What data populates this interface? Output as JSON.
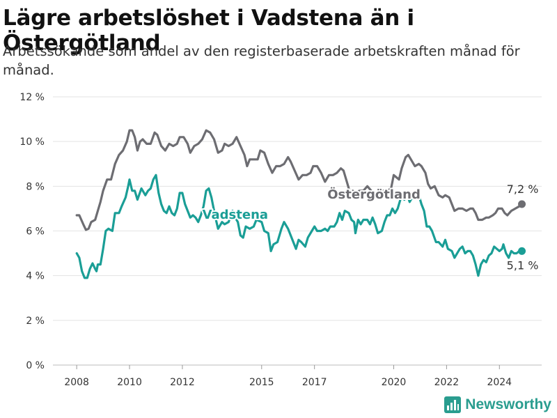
{
  "header": {
    "title": "Lägre arbetslöshet i Vadstena än i Östergötland",
    "subtitle": "Arbetssökande som andel av den registerbaserade arbetskraften månad för månad."
  },
  "brand": {
    "name": "Newsworthy",
    "icon": "bar-chart-icon",
    "color": "#2a9d8f"
  },
  "chart_data": {
    "type": "line",
    "title": "Lägre arbetslöshet i Vadstena än i Östergötland",
    "subtitle": "Arbetssökande som andel av den registerbaserade arbetskraften månad för månad.",
    "ylim": [
      0,
      12
    ],
    "y_ticks": [
      0,
      2,
      4,
      6,
      8,
      10,
      12
    ],
    "y_tick_labels": [
      "0 %",
      "2 %",
      "4 %",
      "6 %",
      "8 %",
      "10 %",
      "12 %"
    ],
    "x_ticks": [
      2008,
      2010,
      2012,
      2015,
      2017,
      2020,
      2022,
      2024
    ],
    "x_tick_labels": [
      "2008",
      "2010",
      "2012",
      "2015",
      "2017",
      "2020",
      "2022",
      "2024"
    ],
    "grid": "horizontal",
    "series": [
      {
        "name": "Östergötland",
        "color": "#6d6d72",
        "end_label": "7,2 %",
        "points": [
          [
            2008.0,
            6.7
          ],
          [
            2008.1,
            6.7
          ],
          [
            2008.25,
            6.3
          ],
          [
            2008.35,
            6.05
          ],
          [
            2008.45,
            6.1
          ],
          [
            2008.55,
            6.4
          ],
          [
            2008.7,
            6.5
          ],
          [
            2008.8,
            6.9
          ],
          [
            2008.9,
            7.3
          ],
          [
            2009.0,
            7.8
          ],
          [
            2009.15,
            8.3
          ],
          [
            2009.3,
            8.3
          ],
          [
            2009.45,
            9.0
          ],
          [
            2009.6,
            9.4
          ],
          [
            2009.75,
            9.6
          ],
          [
            2009.9,
            10.0
          ],
          [
            2010.0,
            10.5
          ],
          [
            2010.1,
            10.5
          ],
          [
            2010.2,
            10.2
          ],
          [
            2010.3,
            9.6
          ],
          [
            2010.4,
            10.0
          ],
          [
            2010.5,
            10.1
          ],
          [
            2010.65,
            9.9
          ],
          [
            2010.8,
            9.9
          ],
          [
            2010.95,
            10.4
          ],
          [
            2011.05,
            10.3
          ],
          [
            2011.2,
            9.8
          ],
          [
            2011.35,
            9.6
          ],
          [
            2011.5,
            9.9
          ],
          [
            2011.65,
            9.8
          ],
          [
            2011.8,
            9.9
          ],
          [
            2011.9,
            10.2
          ],
          [
            2012.05,
            10.2
          ],
          [
            2012.2,
            9.9
          ],
          [
            2012.3,
            9.5
          ],
          [
            2012.45,
            9.8
          ],
          [
            2012.6,
            9.9
          ],
          [
            2012.75,
            10.1
          ],
          [
            2012.9,
            10.5
          ],
          [
            2013.05,
            10.4
          ],
          [
            2013.2,
            10.1
          ],
          [
            2013.35,
            9.5
          ],
          [
            2013.5,
            9.6
          ],
          [
            2013.6,
            9.9
          ],
          [
            2013.75,
            9.8
          ],
          [
            2013.9,
            9.9
          ],
          [
            2014.05,
            10.2
          ],
          [
            2014.2,
            9.8
          ],
          [
            2014.35,
            9.4
          ],
          [
            2014.45,
            8.9
          ],
          [
            2014.55,
            9.2
          ],
          [
            2014.7,
            9.2
          ],
          [
            2014.85,
            9.2
          ],
          [
            2014.95,
            9.6
          ],
          [
            2015.1,
            9.5
          ],
          [
            2015.25,
            9.0
          ],
          [
            2015.4,
            8.6
          ],
          [
            2015.55,
            8.9
          ],
          [
            2015.7,
            8.9
          ],
          [
            2015.85,
            9.0
          ],
          [
            2016.0,
            9.3
          ],
          [
            2016.1,
            9.1
          ],
          [
            2016.25,
            8.7
          ],
          [
            2016.4,
            8.3
          ],
          [
            2016.55,
            8.5
          ],
          [
            2016.7,
            8.5
          ],
          [
            2016.85,
            8.6
          ],
          [
            2016.95,
            8.9
          ],
          [
            2017.1,
            8.9
          ],
          [
            2017.25,
            8.6
          ],
          [
            2017.4,
            8.2
          ],
          [
            2017.55,
            8.5
          ],
          [
            2017.7,
            8.5
          ],
          [
            2017.85,
            8.6
          ],
          [
            2018.0,
            8.8
          ],
          [
            2018.1,
            8.7
          ],
          [
            2018.2,
            8.3
          ],
          [
            2018.35,
            7.7
          ],
          [
            2018.45,
            7.8
          ],
          [
            2018.55,
            7.7
          ],
          [
            2018.7,
            7.8
          ],
          [
            2018.85,
            7.8
          ],
          [
            2019.0,
            8.0
          ],
          [
            2019.15,
            7.8
          ],
          [
            2019.3,
            7.6
          ],
          [
            2019.45,
            7.5
          ],
          [
            2019.6,
            7.8
          ],
          [
            2019.75,
            7.8
          ],
          [
            2019.9,
            7.9
          ],
          [
            2020.0,
            8.5
          ],
          [
            2020.1,
            8.4
          ],
          [
            2020.2,
            8.3
          ],
          [
            2020.3,
            8.8
          ],
          [
            2020.45,
            9.3
          ],
          [
            2020.55,
            9.4
          ],
          [
            2020.65,
            9.2
          ],
          [
            2020.8,
            8.9
          ],
          [
            2020.95,
            9.0
          ],
          [
            2021.05,
            8.9
          ],
          [
            2021.2,
            8.6
          ],
          [
            2021.3,
            8.1
          ],
          [
            2021.4,
            7.9
          ],
          [
            2021.55,
            8.0
          ],
          [
            2021.7,
            7.6
          ],
          [
            2021.85,
            7.5
          ],
          [
            2021.95,
            7.6
          ],
          [
            2022.1,
            7.5
          ],
          [
            2022.2,
            7.2
          ],
          [
            2022.3,
            6.9
          ],
          [
            2022.45,
            7.0
          ],
          [
            2022.6,
            7.0
          ],
          [
            2022.75,
            6.9
          ],
          [
            2022.9,
            7.0
          ],
          [
            2023.0,
            7.0
          ],
          [
            2023.1,
            6.8
          ],
          [
            2023.2,
            6.5
          ],
          [
            2023.35,
            6.5
          ],
          [
            2023.5,
            6.6
          ],
          [
            2023.6,
            6.6
          ],
          [
            2023.75,
            6.7
          ],
          [
            2023.85,
            6.8
          ],
          [
            2023.95,
            7.0
          ],
          [
            2024.1,
            7.0
          ],
          [
            2024.2,
            6.8
          ],
          [
            2024.3,
            6.7
          ],
          [
            2024.45,
            6.9
          ],
          [
            2024.6,
            7.0
          ],
          [
            2024.75,
            7.1
          ],
          [
            2024.85,
            7.2
          ]
        ]
      },
      {
        "name": "Vadstena",
        "color": "#1a9e96",
        "end_label": "5,1 %",
        "points": [
          [
            2008.0,
            5.0
          ],
          [
            2008.1,
            4.8
          ],
          [
            2008.2,
            4.2
          ],
          [
            2008.3,
            3.9
          ],
          [
            2008.4,
            3.9
          ],
          [
            2008.5,
            4.3
          ],
          [
            2008.6,
            4.55
          ],
          [
            2008.7,
            4.3
          ],
          [
            2008.75,
            4.2
          ],
          [
            2008.8,
            4.5
          ],
          [
            2008.9,
            4.5
          ],
          [
            2009.0,
            5.2
          ],
          [
            2009.1,
            6.0
          ],
          [
            2009.2,
            6.1
          ],
          [
            2009.35,
            6.0
          ],
          [
            2009.45,
            6.8
          ],
          [
            2009.6,
            6.8
          ],
          [
            2009.7,
            7.1
          ],
          [
            2009.85,
            7.5
          ],
          [
            2009.95,
            8.0
          ],
          [
            2010.0,
            8.3
          ],
          [
            2010.1,
            7.8
          ],
          [
            2010.2,
            7.8
          ],
          [
            2010.3,
            7.4
          ],
          [
            2010.45,
            7.9
          ],
          [
            2010.6,
            7.6
          ],
          [
            2010.7,
            7.8
          ],
          [
            2010.8,
            7.9
          ],
          [
            2010.9,
            8.3
          ],
          [
            2011.0,
            8.5
          ],
          [
            2011.1,
            7.7
          ],
          [
            2011.2,
            7.2
          ],
          [
            2011.3,
            6.9
          ],
          [
            2011.4,
            6.8
          ],
          [
            2011.5,
            7.1
          ],
          [
            2011.6,
            6.8
          ],
          [
            2011.7,
            6.7
          ],
          [
            2011.8,
            7.0
          ],
          [
            2011.9,
            7.7
          ],
          [
            2012.0,
            7.7
          ],
          [
            2012.1,
            7.2
          ],
          [
            2012.2,
            6.9
          ],
          [
            2012.3,
            6.6
          ],
          [
            2012.4,
            6.7
          ],
          [
            2012.5,
            6.6
          ],
          [
            2012.6,
            6.4
          ],
          [
            2012.7,
            6.7
          ],
          [
            2012.8,
            7.1
          ],
          [
            2012.9,
            7.8
          ],
          [
            2013.0,
            7.9
          ],
          [
            2013.1,
            7.5
          ],
          [
            2013.25,
            6.6
          ],
          [
            2013.35,
            6.1
          ],
          [
            2013.5,
            6.4
          ],
          [
            2013.6,
            6.3
          ],
          [
            2013.75,
            6.4
          ],
          [
            2013.9,
            6.9
          ],
          [
            2014.0,
            6.6
          ],
          [
            2014.1,
            6.4
          ],
          [
            2014.2,
            5.8
          ],
          [
            2014.3,
            5.7
          ],
          [
            2014.4,
            6.2
          ],
          [
            2014.55,
            6.1
          ],
          [
            2014.7,
            6.2
          ],
          [
            2014.8,
            6.5
          ],
          [
            2015.0,
            6.4
          ],
          [
            2015.1,
            6.0
          ],
          [
            2015.25,
            5.9
          ],
          [
            2015.35,
            5.1
          ],
          [
            2015.45,
            5.4
          ],
          [
            2015.6,
            5.5
          ],
          [
            2015.75,
            6.1
          ],
          [
            2015.85,
            6.4
          ],
          [
            2016.0,
            6.1
          ],
          [
            2016.1,
            5.8
          ],
          [
            2016.2,
            5.5
          ],
          [
            2016.3,
            5.2
          ],
          [
            2016.4,
            5.6
          ],
          [
            2016.5,
            5.5
          ],
          [
            2016.65,
            5.3
          ],
          [
            2016.75,
            5.7
          ],
          [
            2016.9,
            6.0
          ],
          [
            2017.0,
            6.2
          ],
          [
            2017.1,
            6.0
          ],
          [
            2017.25,
            6.0
          ],
          [
            2017.4,
            6.1
          ],
          [
            2017.5,
            6.0
          ],
          [
            2017.6,
            6.2
          ],
          [
            2017.75,
            6.2
          ],
          [
            2017.85,
            6.4
          ],
          [
            2017.95,
            6.8
          ],
          [
            2018.05,
            6.5
          ],
          [
            2018.15,
            6.9
          ],
          [
            2018.3,
            6.8
          ],
          [
            2018.4,
            6.5
          ],
          [
            2018.5,
            6.4
          ],
          [
            2018.55,
            5.9
          ],
          [
            2018.65,
            6.5
          ],
          [
            2018.75,
            6.3
          ],
          [
            2018.85,
            6.5
          ],
          [
            2019.0,
            6.5
          ],
          [
            2019.1,
            6.3
          ],
          [
            2019.2,
            6.6
          ],
          [
            2019.3,
            6.3
          ],
          [
            2019.4,
            5.9
          ],
          [
            2019.55,
            6.0
          ],
          [
            2019.65,
            6.4
          ],
          [
            2019.75,
            6.7
          ],
          [
            2019.85,
            6.7
          ],
          [
            2019.95,
            7.0
          ],
          [
            2020.05,
            6.8
          ],
          [
            2020.15,
            7.0
          ],
          [
            2020.3,
            7.6
          ],
          [
            2020.4,
            7.4
          ],
          [
            2020.5,
            7.7
          ],
          [
            2020.6,
            7.3
          ],
          [
            2020.7,
            7.5
          ],
          [
            2020.8,
            7.6
          ],
          [
            2020.85,
            7.7
          ],
          [
            2020.95,
            7.6
          ],
          [
            2021.05,
            7.2
          ],
          [
            2021.15,
            6.9
          ],
          [
            2021.25,
            6.2
          ],
          [
            2021.35,
            6.2
          ],
          [
            2021.45,
            6.0
          ],
          [
            2021.6,
            5.5
          ],
          [
            2021.7,
            5.5
          ],
          [
            2021.85,
            5.3
          ],
          [
            2021.95,
            5.6
          ],
          [
            2022.05,
            5.2
          ],
          [
            2022.2,
            5.1
          ],
          [
            2022.3,
            4.8
          ],
          [
            2022.4,
            5.0
          ],
          [
            2022.5,
            5.2
          ],
          [
            2022.6,
            5.3
          ],
          [
            2022.7,
            5.0
          ],
          [
            2022.8,
            5.1
          ],
          [
            2022.9,
            5.1
          ],
          [
            2023.0,
            4.9
          ],
          [
            2023.1,
            4.5
          ],
          [
            2023.2,
            4.0
          ],
          [
            2023.3,
            4.5
          ],
          [
            2023.4,
            4.7
          ],
          [
            2023.5,
            4.6
          ],
          [
            2023.6,
            4.9
          ],
          [
            2023.7,
            5.0
          ],
          [
            2023.8,
            5.3
          ],
          [
            2023.9,
            5.2
          ],
          [
            2024.0,
            5.1
          ],
          [
            2024.1,
            5.2
          ],
          [
            2024.15,
            5.4
          ],
          [
            2024.25,
            5.0
          ],
          [
            2024.35,
            4.8
          ],
          [
            2024.45,
            5.1
          ],
          [
            2024.55,
            5.0
          ],
          [
            2024.65,
            5.0
          ],
          [
            2024.75,
            5.1
          ],
          [
            2024.85,
            5.1
          ]
        ]
      }
    ]
  }
}
